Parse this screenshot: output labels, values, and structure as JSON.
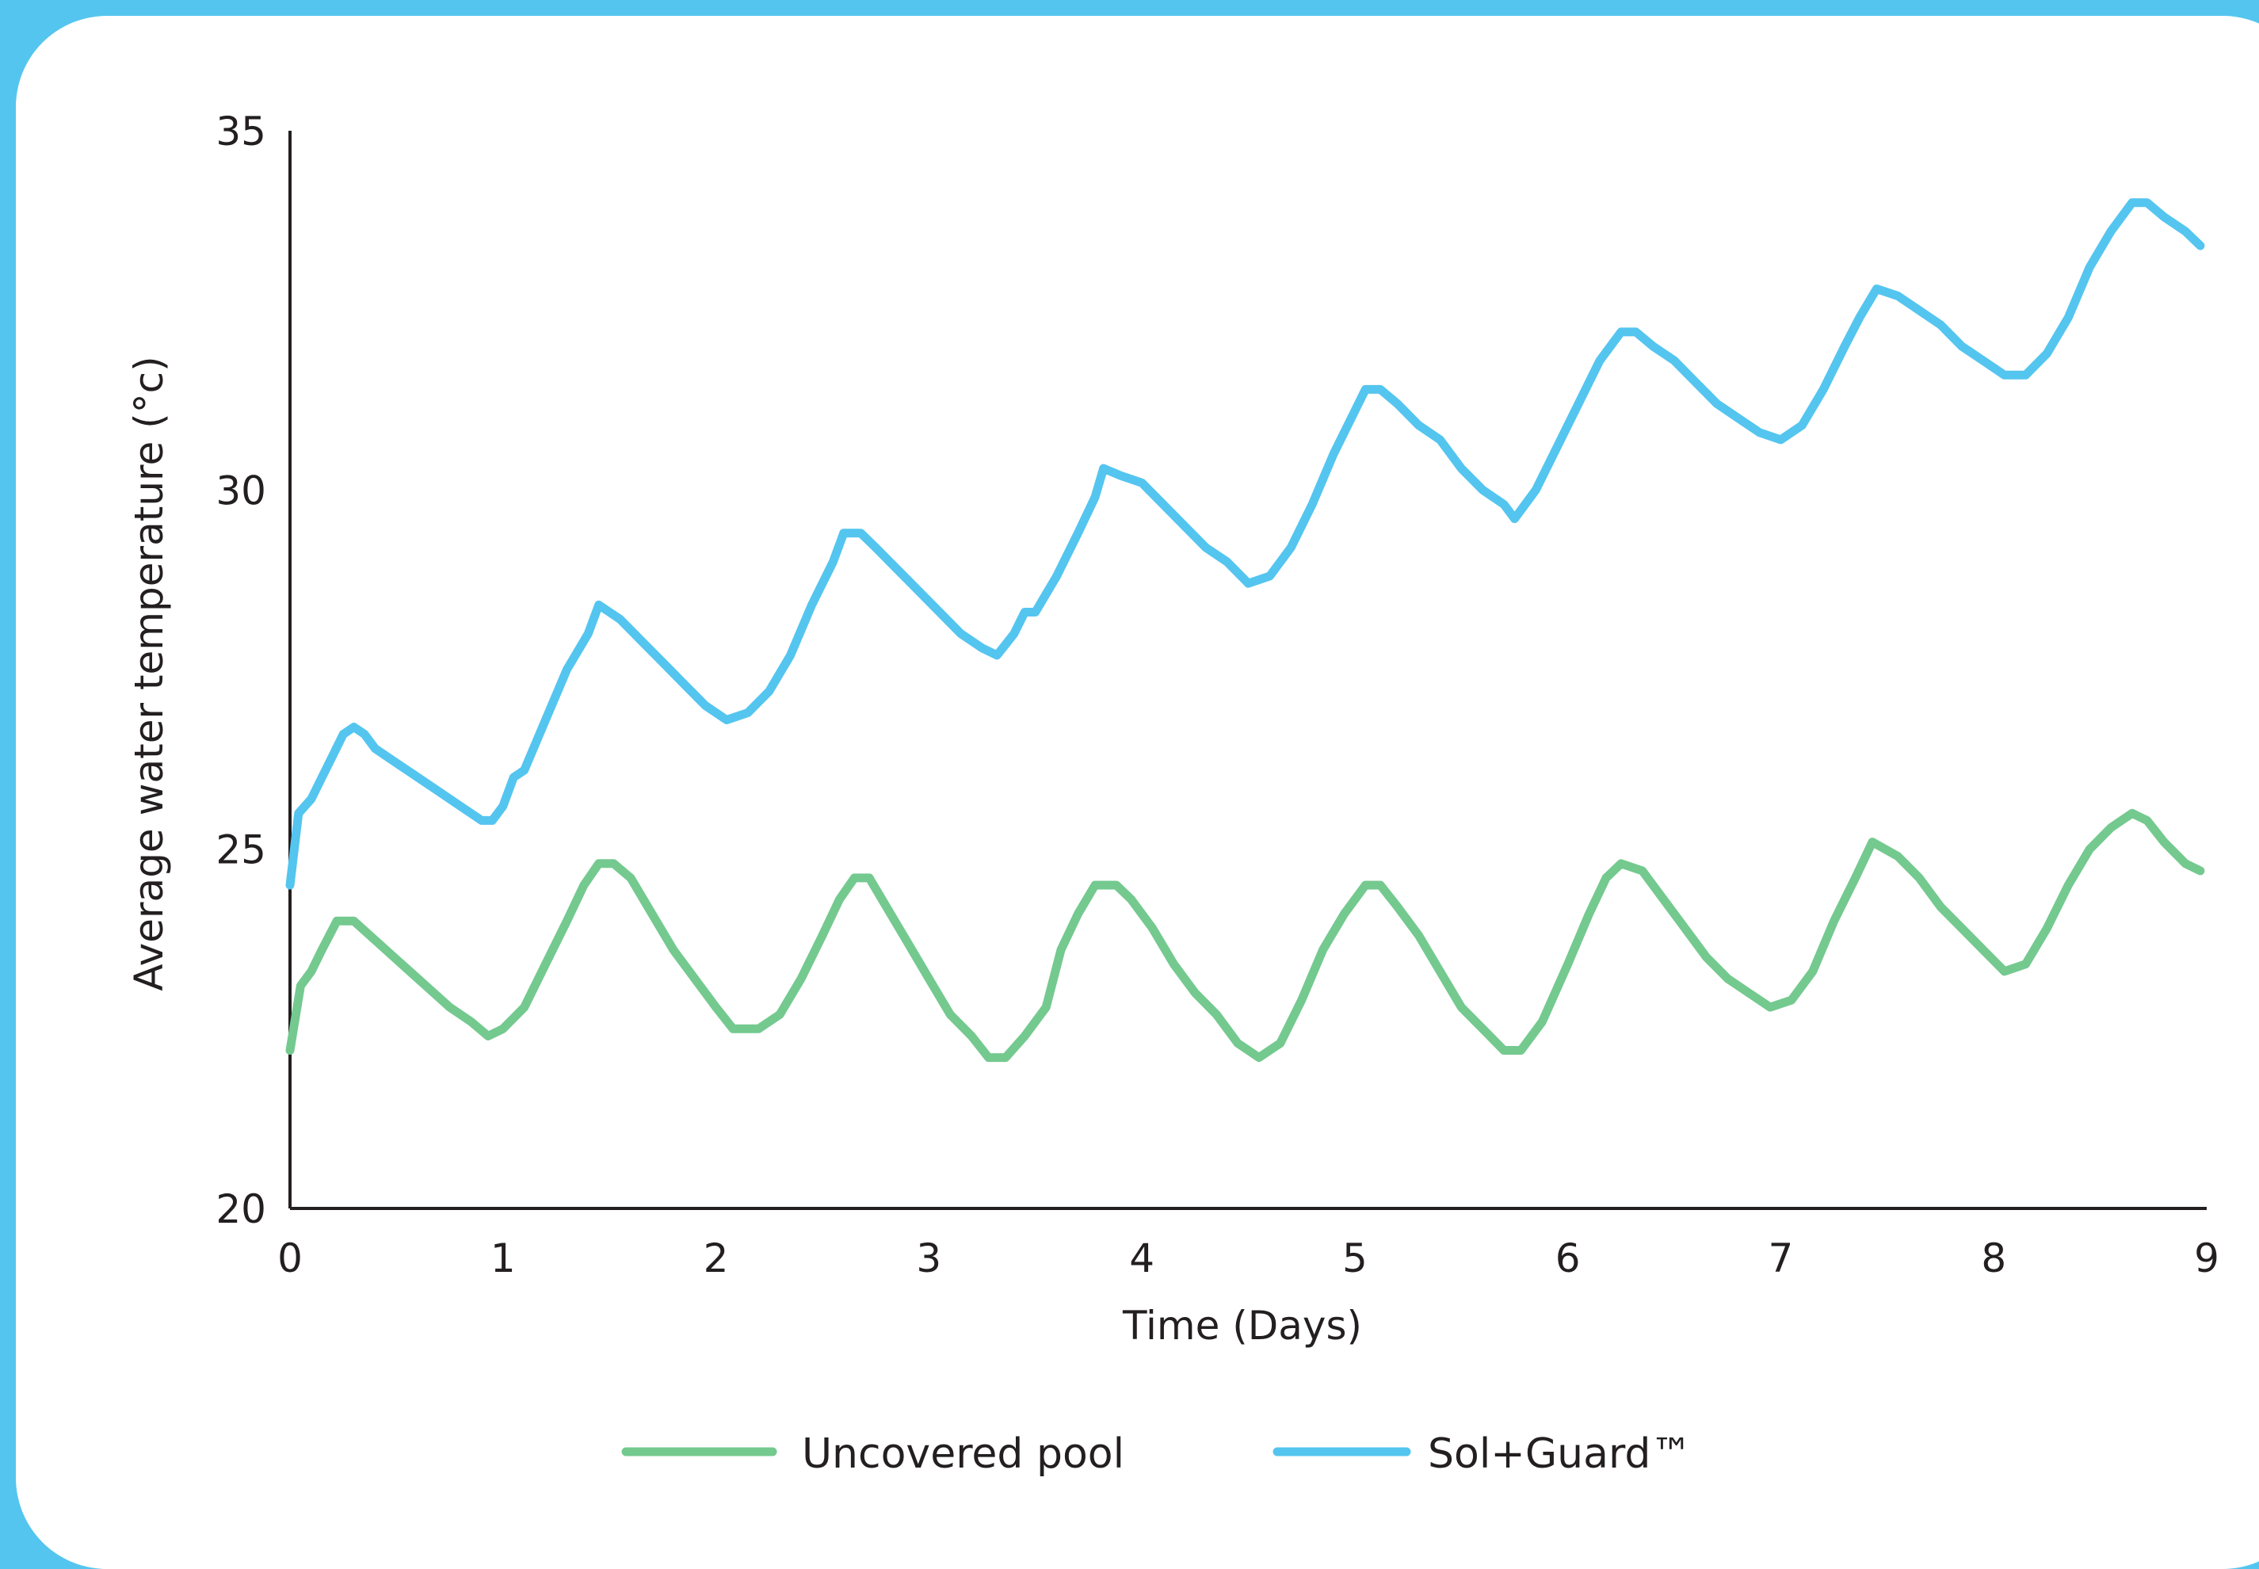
{
  "chart_data": {
    "type": "line",
    "title": "",
    "xlabel": "Time (Days)",
    "ylabel": "Average water temperature (°c)",
    "xlim": [
      0,
      9
    ],
    "ylim": [
      20,
      35
    ],
    "x_ticks": [
      0,
      1,
      2,
      3,
      4,
      5,
      6,
      7,
      8,
      9
    ],
    "y_ticks": [
      20,
      25,
      30,
      35
    ],
    "grid": false,
    "legend_position": "bottom",
    "series": [
      {
        "name": "Uncovered pool",
        "color": "#74c98f",
        "points": [
          [
            0.0,
            22.2
          ],
          [
            0.05,
            23.1
          ],
          [
            0.1,
            23.3
          ],
          [
            0.15,
            23.6
          ],
          [
            0.22,
            24.0
          ],
          [
            0.3,
            24.0
          ],
          [
            0.45,
            23.6
          ],
          [
            0.6,
            23.2
          ],
          [
            0.75,
            22.8
          ],
          [
            0.85,
            22.6
          ],
          [
            0.93,
            22.4
          ],
          [
            1.0,
            22.5
          ],
          [
            1.1,
            22.8
          ],
          [
            1.2,
            23.4
          ],
          [
            1.3,
            24.0
          ],
          [
            1.38,
            24.5
          ],
          [
            1.45,
            24.8
          ],
          [
            1.52,
            24.8
          ],
          [
            1.6,
            24.6
          ],
          [
            1.7,
            24.1
          ],
          [
            1.8,
            23.6
          ],
          [
            1.9,
            23.2
          ],
          [
            2.0,
            22.8
          ],
          [
            2.08,
            22.5
          ],
          [
            2.2,
            22.5
          ],
          [
            2.3,
            22.7
          ],
          [
            2.4,
            23.2
          ],
          [
            2.5,
            23.8
          ],
          [
            2.58,
            24.3
          ],
          [
            2.65,
            24.6
          ],
          [
            2.72,
            24.6
          ],
          [
            2.8,
            24.2
          ],
          [
            2.9,
            23.7
          ],
          [
            3.0,
            23.2
          ],
          [
            3.1,
            22.7
          ],
          [
            3.2,
            22.4
          ],
          [
            3.28,
            22.1
          ],
          [
            3.36,
            22.1
          ],
          [
            3.45,
            22.4
          ],
          [
            3.55,
            22.8
          ],
          [
            3.62,
            23.6
          ],
          [
            3.7,
            24.1
          ],
          [
            3.78,
            24.5
          ],
          [
            3.88,
            24.5
          ],
          [
            3.95,
            24.3
          ],
          [
            4.05,
            23.9
          ],
          [
            4.15,
            23.4
          ],
          [
            4.25,
            23.0
          ],
          [
            4.35,
            22.7
          ],
          [
            4.45,
            22.3
          ],
          [
            4.55,
            22.1
          ],
          [
            4.65,
            22.3
          ],
          [
            4.75,
            22.9
          ],
          [
            4.85,
            23.6
          ],
          [
            4.95,
            24.1
          ],
          [
            5.05,
            24.5
          ],
          [
            5.12,
            24.5
          ],
          [
            5.2,
            24.2
          ],
          [
            5.3,
            23.8
          ],
          [
            5.4,
            23.3
          ],
          [
            5.5,
            22.8
          ],
          [
            5.6,
            22.5
          ],
          [
            5.7,
            22.2
          ],
          [
            5.78,
            22.2
          ],
          [
            5.88,
            22.6
          ],
          [
            6.0,
            23.4
          ],
          [
            6.1,
            24.1
          ],
          [
            6.18,
            24.6
          ],
          [
            6.25,
            24.8
          ],
          [
            6.35,
            24.7
          ],
          [
            6.45,
            24.3
          ],
          [
            6.55,
            23.9
          ],
          [
            6.65,
            23.5
          ],
          [
            6.75,
            23.2
          ],
          [
            6.85,
            23.0
          ],
          [
            6.95,
            22.8
          ],
          [
            7.05,
            22.9
          ],
          [
            7.15,
            23.3
          ],
          [
            7.25,
            24.0
          ],
          [
            7.35,
            24.6
          ],
          [
            7.43,
            25.1
          ],
          [
            7.55,
            24.9
          ],
          [
            7.65,
            24.6
          ],
          [
            7.75,
            24.2
          ],
          [
            7.85,
            23.9
          ],
          [
            7.95,
            23.6
          ],
          [
            8.05,
            23.3
          ],
          [
            8.15,
            23.4
          ],
          [
            8.25,
            23.9
          ],
          [
            8.35,
            24.5
          ],
          [
            8.45,
            25.0
          ],
          [
            8.55,
            25.3
          ],
          [
            8.65,
            25.5
          ],
          [
            8.72,
            25.4
          ],
          [
            8.8,
            25.1
          ],
          [
            8.9,
            24.8
          ],
          [
            8.97,
            24.7
          ]
        ]
      },
      {
        "name": "Sol+Guard™",
        "color": "#54c5ef",
        "points": [
          [
            0.0,
            24.5
          ],
          [
            0.04,
            25.5
          ],
          [
            0.1,
            25.7
          ],
          [
            0.15,
            26.0
          ],
          [
            0.2,
            26.3
          ],
          [
            0.25,
            26.6
          ],
          [
            0.3,
            26.7
          ],
          [
            0.35,
            26.6
          ],
          [
            0.4,
            26.4
          ],
          [
            0.5,
            26.2
          ],
          [
            0.6,
            26.0
          ],
          [
            0.7,
            25.8
          ],
          [
            0.8,
            25.6
          ],
          [
            0.9,
            25.4
          ],
          [
            0.95,
            25.4
          ],
          [
            1.0,
            25.6
          ],
          [
            1.05,
            26.0
          ],
          [
            1.1,
            26.1
          ],
          [
            1.2,
            26.8
          ],
          [
            1.3,
            27.5
          ],
          [
            1.4,
            28.0
          ],
          [
            1.45,
            28.4
          ],
          [
            1.5,
            28.3
          ],
          [
            1.55,
            28.2
          ],
          [
            1.65,
            27.9
          ],
          [
            1.75,
            27.6
          ],
          [
            1.85,
            27.3
          ],
          [
            1.95,
            27.0
          ],
          [
            2.05,
            26.8
          ],
          [
            2.15,
            26.9
          ],
          [
            2.25,
            27.2
          ],
          [
            2.35,
            27.7
          ],
          [
            2.45,
            28.4
          ],
          [
            2.55,
            29.0
          ],
          [
            2.6,
            29.4
          ],
          [
            2.68,
            29.4
          ],
          [
            2.75,
            29.2
          ],
          [
            2.85,
            28.9
          ],
          [
            2.95,
            28.6
          ],
          [
            3.05,
            28.3
          ],
          [
            3.15,
            28.0
          ],
          [
            3.25,
            27.8
          ],
          [
            3.32,
            27.7
          ],
          [
            3.4,
            28.0
          ],
          [
            3.45,
            28.3
          ],
          [
            3.5,
            28.3
          ],
          [
            3.6,
            28.8
          ],
          [
            3.7,
            29.4
          ],
          [
            3.78,
            29.9
          ],
          [
            3.82,
            30.3
          ],
          [
            3.9,
            30.2
          ],
          [
            4.0,
            30.1
          ],
          [
            4.1,
            29.8
          ],
          [
            4.2,
            29.5
          ],
          [
            4.3,
            29.2
          ],
          [
            4.4,
            29.0
          ],
          [
            4.5,
            28.7
          ],
          [
            4.6,
            28.8
          ],
          [
            4.7,
            29.2
          ],
          [
            4.8,
            29.8
          ],
          [
            4.9,
            30.5
          ],
          [
            5.0,
            31.1
          ],
          [
            5.05,
            31.4
          ],
          [
            5.12,
            31.4
          ],
          [
            5.2,
            31.2
          ],
          [
            5.3,
            30.9
          ],
          [
            5.4,
            30.7
          ],
          [
            5.5,
            30.3
          ],
          [
            5.6,
            30.0
          ],
          [
            5.7,
            29.8
          ],
          [
            5.75,
            29.6
          ],
          [
            5.85,
            30.0
          ],
          [
            5.95,
            30.6
          ],
          [
            6.05,
            31.2
          ],
          [
            6.15,
            31.8
          ],
          [
            6.25,
            32.2
          ],
          [
            6.32,
            32.2
          ],
          [
            6.4,
            32.0
          ],
          [
            6.5,
            31.8
          ],
          [
            6.6,
            31.5
          ],
          [
            6.7,
            31.2
          ],
          [
            6.8,
            31.0
          ],
          [
            6.9,
            30.8
          ],
          [
            7.0,
            30.7
          ],
          [
            7.1,
            30.9
          ],
          [
            7.2,
            31.4
          ],
          [
            7.3,
            32.0
          ],
          [
            7.37,
            32.4
          ],
          [
            7.45,
            32.8
          ],
          [
            7.55,
            32.7
          ],
          [
            7.65,
            32.5
          ],
          [
            7.75,
            32.3
          ],
          [
            7.85,
            32.0
          ],
          [
            7.95,
            31.8
          ],
          [
            8.05,
            31.6
          ],
          [
            8.15,
            31.6
          ],
          [
            8.25,
            31.9
          ],
          [
            8.35,
            32.4
          ],
          [
            8.45,
            33.1
          ],
          [
            8.55,
            33.6
          ],
          [
            8.65,
            34.0
          ],
          [
            8.72,
            34.0
          ],
          [
            8.8,
            33.8
          ],
          [
            8.9,
            33.6
          ],
          [
            8.97,
            33.4
          ]
        ]
      }
    ]
  }
}
